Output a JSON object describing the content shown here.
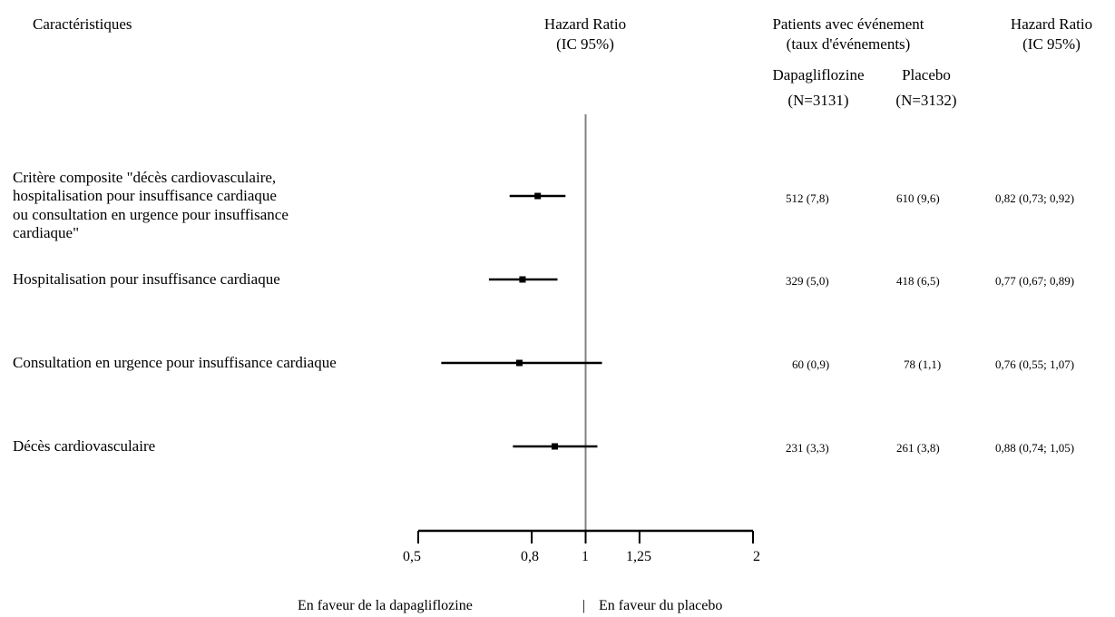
{
  "header": {
    "characteristics": "Caractéristiques",
    "hr_plot_line1": "Hazard Ratio",
    "hr_plot_line2": "(IC 95%)",
    "patients_line1": "Patients avec événement",
    "patients_line2": "(taux d'événements)",
    "arm1_name": "Dapagliflozine",
    "arm1_n": "(N=3131)",
    "arm2_name": "Placebo",
    "arm2_n": "(N=3132)",
    "hr_col_line1": "Hazard Ratio",
    "hr_col_line2": "(IC 95%)"
  },
  "rows": [
    {
      "label_lines": [
        "Critère composite \"décès cardiovasculaire,",
        "hospitalisation pour insuffisance cardiaque",
        "ou consultation en urgence pour insuffisance",
        "cardiaque\""
      ],
      "dapagliflozine": "512 (7,8)",
      "placebo": "610 (9,6)",
      "hr_text": "0,82 (0,73; 0,92)"
    },
    {
      "label_lines": [
        "Hospitalisation pour insuffisance cardiaque"
      ],
      "dapagliflozine": "329 (5,0)",
      "placebo": "418 (6,5)",
      "hr_text": "0,77 (0,67; 0,89)"
    },
    {
      "label_lines": [
        "Consultation en urgence pour insuffisance cardiaque"
      ],
      "dapagliflozine": "60 (0,9)",
      "placebo": "78 (1,1)",
      "hr_text": "0,76 (0,55; 1,07)"
    },
    {
      "label_lines": [
        "Décès cardiovasculaire"
      ],
      "dapagliflozine": "231 (3,3)",
      "placebo": "261 (3,8)",
      "hr_text": "0,88 (0,74; 1,05)"
    }
  ],
  "axis": {
    "ticks": [
      "0,5",
      "0,8",
      "1",
      "1,25",
      "2"
    ],
    "favor_left": "En faveur de la dapagliflozine",
    "favor_right": "En faveur du placebo"
  },
  "chart_data": {
    "type": "forest",
    "scale": "log",
    "reference_line": 1,
    "xlim": [
      0.5,
      2
    ],
    "xticks": [
      0.5,
      0.8,
      1,
      1.25,
      2
    ],
    "points": [
      {
        "hr": 0.82,
        "lo": 0.73,
        "hi": 0.92
      },
      {
        "hr": 0.77,
        "lo": 0.67,
        "hi": 0.89
      },
      {
        "hr": 0.76,
        "lo": 0.55,
        "hi": 1.07
      },
      {
        "hr": 0.88,
        "lo": 0.74,
        "hi": 1.05
      }
    ],
    "colors": {
      "marker": "#000000",
      "reference": "#808080",
      "axis": "#000000"
    }
  }
}
